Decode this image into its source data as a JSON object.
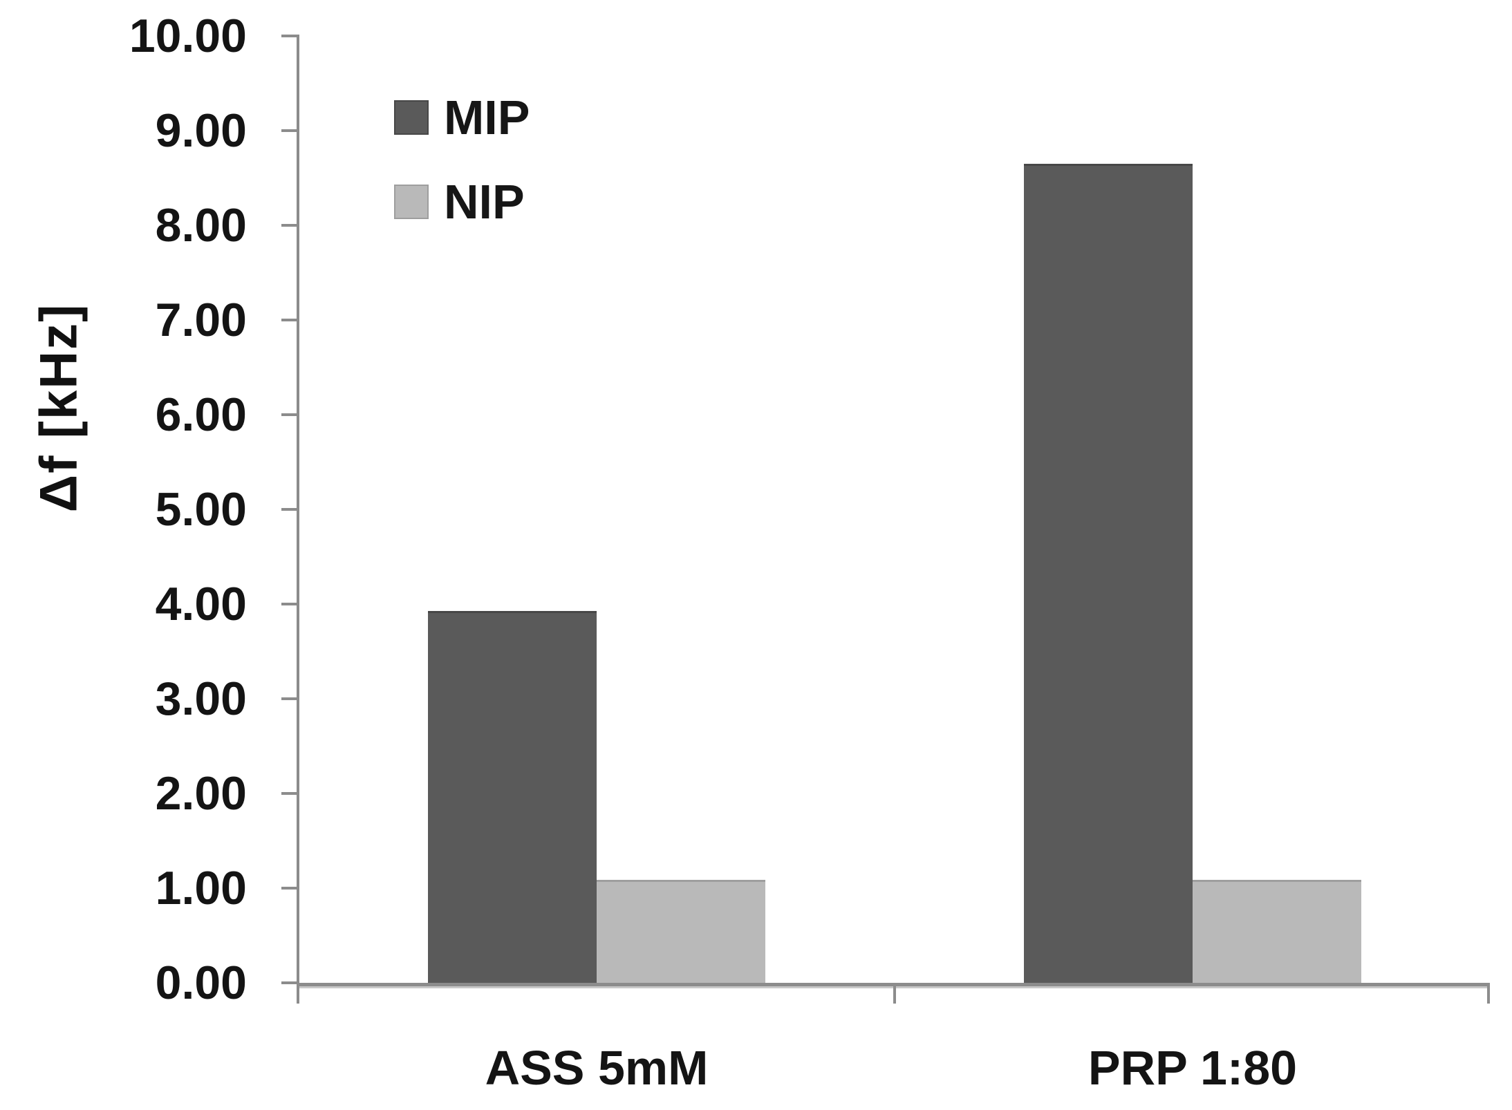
{
  "chart_data": {
    "type": "bar",
    "title": "",
    "categories": [
      "ASS 5mM",
      "PRP 1:80"
    ],
    "series": [
      {
        "name": "MIP",
        "color": "#5a5a5a",
        "edge_color": "#474747",
        "values": [
          3.93,
          8.65
        ]
      },
      {
        "name": "NIP",
        "color": "#b9b9b9",
        "edge_color": "#9e9e9e",
        "values": [
          1.09,
          1.09
        ]
      }
    ],
    "xlabel": "",
    "ylabel": "Δf [kHz]",
    "ylim": [
      0,
      10
    ],
    "y_tick_step": 1,
    "y_tick_labels": [
      "0.00",
      "1.00",
      "2.00",
      "3.00",
      "4.00",
      "5.00",
      "6.00",
      "7.00",
      "8.00",
      "9.00",
      "10.00"
    ],
    "grid": false,
    "legend_position": "upper-left-inside",
    "axis_color": "#8c8c8c",
    "text_color": "#141414",
    "background_color": "#ffffff"
  }
}
